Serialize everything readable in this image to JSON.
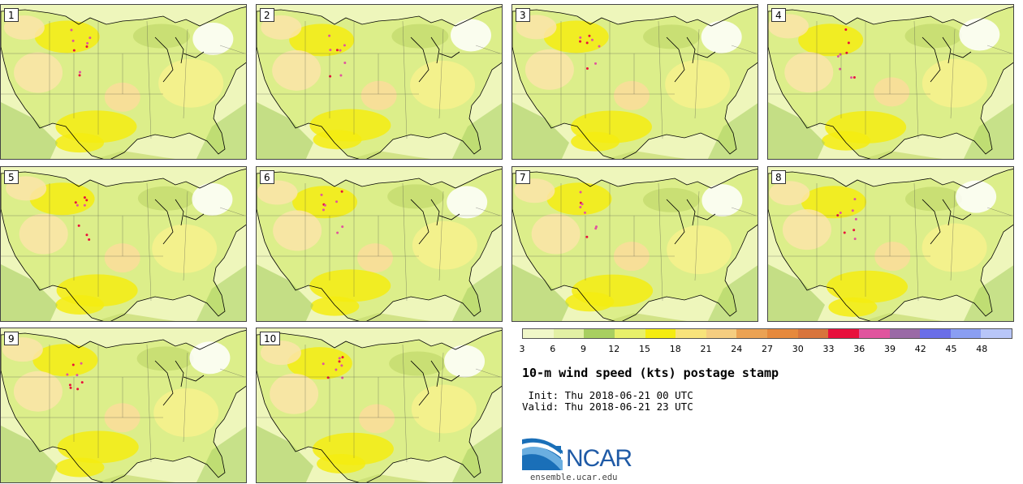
{
  "panels": [
    {
      "label": "1"
    },
    {
      "label": "2"
    },
    {
      "label": "3"
    },
    {
      "label": "4"
    },
    {
      "label": "5"
    },
    {
      "label": "6"
    },
    {
      "label": "7"
    },
    {
      "label": "8"
    },
    {
      "label": "9"
    },
    {
      "label": "10"
    }
  ],
  "colorbar": {
    "ticks": [
      "3",
      "6",
      "9",
      "12",
      "15",
      "18",
      "21",
      "24",
      "27",
      "30",
      "33",
      "36",
      "39",
      "42",
      "45",
      "48"
    ],
    "colors": [
      "#f0f7c8",
      "#e2f0a4",
      "#a8cf60",
      "#e8f06a",
      "#f5ec10",
      "#f8e37a",
      "#f5cd80",
      "#eba253",
      "#e6893c",
      "#d8743c",
      "#e8103c",
      "#e0559e",
      "#9a6aa6",
      "#6a6ee8",
      "#8a9ef2",
      "#b8c6f8"
    ]
  },
  "title": "10-m wind speed (kts) postage stamp",
  "init": " Init: Thu 2018-06-21 00 UTC",
  "valid": "Valid: Thu 2018-06-21 23 UTC",
  "logo": {
    "text": "NCAR",
    "site": "ensemble.ucar.edu"
  }
}
